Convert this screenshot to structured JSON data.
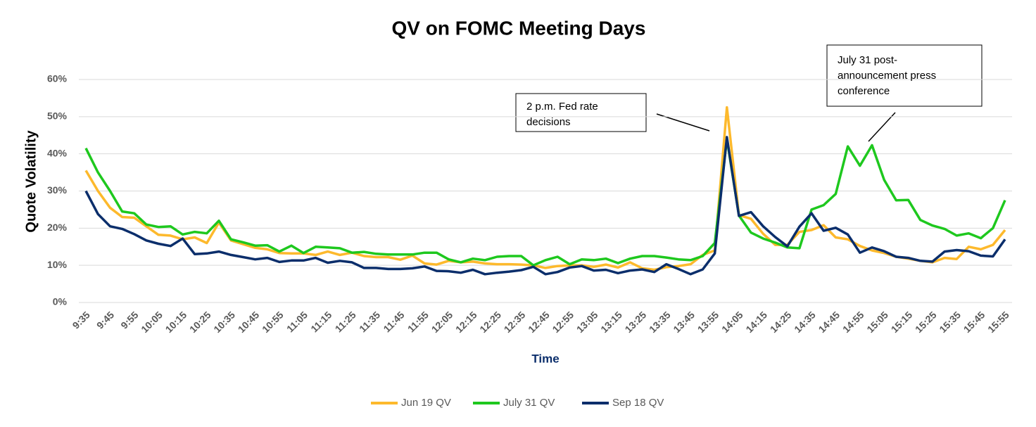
{
  "chart_data": {
    "type": "line",
    "title": "QV on FOMC Meeting Days",
    "x_label": "Time",
    "y_label": "Quote Volatility",
    "categories": [
      "9:35",
      null,
      "9:45",
      null,
      "9:55",
      null,
      "10:05",
      null,
      "10:15",
      null,
      "10:25",
      null,
      "10:35",
      null,
      "10:45",
      null,
      "10:55",
      null,
      "11:05",
      null,
      "11:15",
      null,
      "11:25",
      null,
      "11:35",
      null,
      "11:45",
      null,
      "11:55",
      null,
      "12:05",
      null,
      "12:15",
      null,
      "12:25",
      null,
      "12:35",
      null,
      "12:45",
      null,
      "12:55",
      null,
      "13:05",
      null,
      "13:15",
      null,
      "13:25",
      null,
      "13:35",
      null,
      "13:45",
      null,
      "13:55",
      null,
      "14:05",
      null,
      "14:15",
      null,
      "14:25",
      null,
      "14:35",
      null,
      "14:45",
      null,
      "14:55",
      null,
      "15:05",
      null,
      "15:15",
      null,
      "15:25",
      null,
      "15:35",
      null,
      "15:45",
      null,
      "15:55"
    ],
    "series": [
      {
        "name": "Jun 19 QV",
        "color": "#fdb92c",
        "values": [
          35.5,
          30,
          25.5,
          23,
          22.8,
          20.5,
          18.2,
          18,
          17,
          17.5,
          16,
          21.5,
          16.7,
          15.7,
          14.7,
          14.3,
          13.3,
          13.2,
          13.2,
          12.8,
          13.7,
          12.8,
          13.4,
          12.5,
          12.2,
          12.2,
          11.5,
          12.6,
          10.5,
          10.2,
          11.2,
          10.8,
          11,
          10.5,
          10.3,
          10.3,
          10.2,
          10,
          9.3,
          9.8,
          10,
          10,
          9.6,
          10.2,
          9.4,
          10.8,
          9.2,
          8.8,
          9.5,
          9.8,
          10.3,
          12.8,
          14,
          52.5,
          23.5,
          22.5,
          18.5,
          15.5,
          15.5,
          19,
          19.5,
          20.8,
          17.5,
          17,
          15.2,
          14,
          13.3,
          12.3,
          11.8,
          11.2,
          10.8,
          12,
          11.7,
          15,
          14.3,
          15.5,
          19.5
        ]
      },
      {
        "name": "July 31 QV",
        "color": "#1ec81e",
        "values": [
          41.5,
          35,
          30,
          24.5,
          24,
          21,
          20.3,
          20.5,
          18.3,
          19,
          18.6,
          22,
          17,
          16.2,
          15.3,
          15.4,
          13.7,
          15.3,
          13.3,
          15,
          14.8,
          14.6,
          13.4,
          13.6,
          13.1,
          12.9,
          12.9,
          12.9,
          13.4,
          13.4,
          11.6,
          10.8,
          11.8,
          11.4,
          12.3,
          12.5,
          12.5,
          10,
          11.4,
          12.3,
          10.3,
          11.6,
          11.4,
          11.8,
          10.6,
          11.8,
          12.5,
          12.5,
          12.1,
          11.6,
          11.4,
          12.5,
          16,
          44,
          23.4,
          18.8,
          17.2,
          16.1,
          14.8,
          14.6,
          25,
          26.2,
          29.2,
          42,
          36.8,
          42.3,
          33,
          27.5,
          27.6,
          22.2,
          20.7,
          19.8,
          18,
          18.6,
          17.3,
          20,
          27.5
        ]
      },
      {
        "name": "Sep 18 QV",
        "color": "#0b2e6b",
        "values": [
          30,
          23.8,
          20.5,
          19.8,
          18.4,
          16.7,
          15.8,
          15.2,
          17.2,
          13,
          13.2,
          13.7,
          12.8,
          12.2,
          11.6,
          12,
          10.9,
          11.3,
          11.3,
          12,
          10.7,
          11.2,
          10.8,
          9.3,
          9.3,
          9,
          9,
          9.2,
          9.7,
          8.5,
          8.4,
          8,
          8.8,
          7.6,
          8,
          8.3,
          8.7,
          9.6,
          7.6,
          8.2,
          9.4,
          9.8,
          8.6,
          8.8,
          7.9,
          8.6,
          8.9,
          8.2,
          10.3,
          9,
          7.6,
          8.9,
          13.2,
          44.5,
          23.3,
          24.3,
          20.5,
          17.6,
          15.1,
          20.4,
          24,
          19.3,
          20.1,
          18.3,
          13.4,
          14.8,
          13.8,
          12.3,
          12,
          11.2,
          11,
          13.7,
          14.1,
          13.8,
          12.6,
          12.4,
          17
        ]
      }
    ],
    "ylim": [
      0,
      60
    ],
    "yticks": [
      {
        "value": 0,
        "label": "0%"
      },
      {
        "value": 10,
        "label": "10%"
      },
      {
        "value": 20,
        "label": "20%"
      },
      {
        "value": 30,
        "label": "30%"
      },
      {
        "value": 40,
        "label": "40%"
      },
      {
        "value": 50,
        "label": "50%"
      },
      {
        "value": 60,
        "label": "60%"
      }
    ],
    "grid": true,
    "legend": "bottom",
    "annotations": [
      {
        "lines": [
          "2 p.m. Fed rate",
          "decisions"
        ]
      },
      {
        "lines": [
          "July 31 post-",
          "announcement press",
          "conference"
        ]
      }
    ]
  }
}
